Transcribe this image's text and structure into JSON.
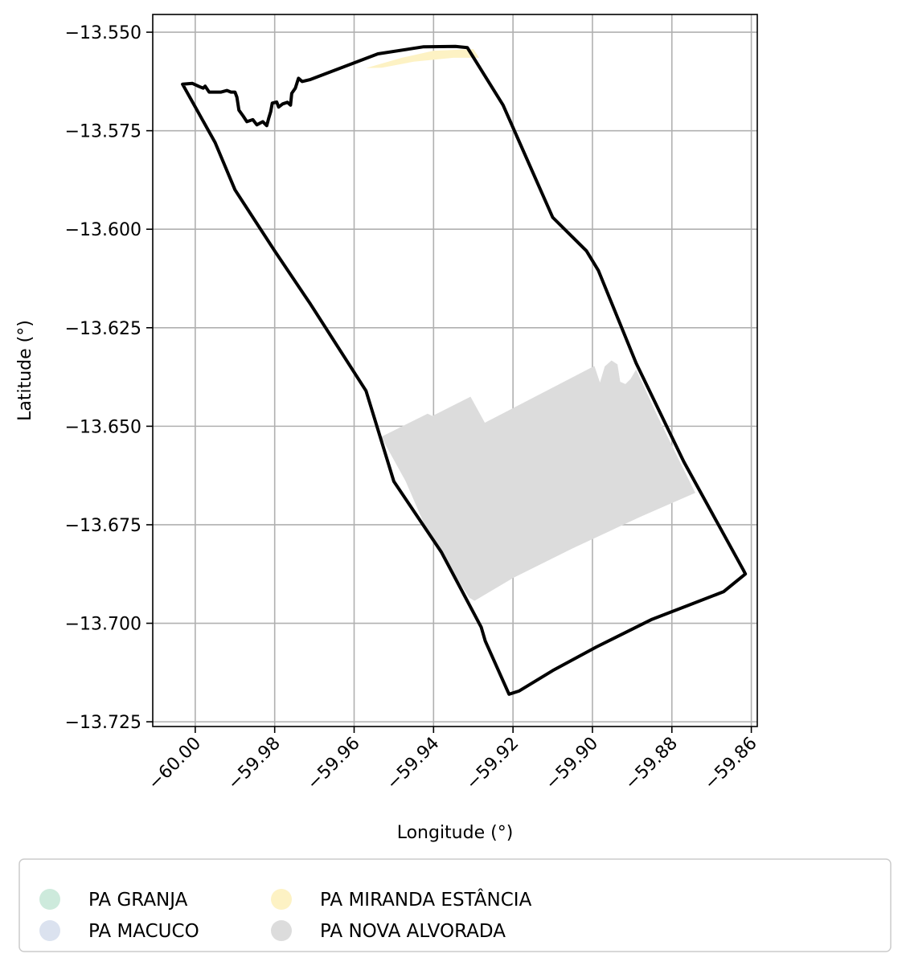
{
  "chart_data": {
    "type": "map",
    "xlabel": "Longitude (°)",
    "ylabel": "Latitude (°)",
    "xlim": [
      -60.0107,
      -59.8585
    ],
    "ylim": [
      -13.7262,
      -13.5455
    ],
    "grid": true,
    "x_ticks": [
      -60.0,
      -59.98,
      -59.96,
      -59.94,
      -59.92,
      -59.9,
      -59.88,
      -59.86
    ],
    "x_tick_labels": [
      "−60.00",
      "−59.98",
      "−59.96",
      "−59.94",
      "−59.92",
      "−59.90",
      "−59.88",
      "−59.86"
    ],
    "y_ticks": [
      -13.55,
      -13.575,
      -13.6,
      -13.625,
      -13.65,
      -13.675,
      -13.7,
      -13.725
    ],
    "y_tick_labels": [
      "−13.550",
      "−13.575",
      "−13.600",
      "−13.625",
      "−13.650",
      "−13.675",
      "−13.700",
      "−13.725"
    ],
    "legend_position": "bottom",
    "legend": [
      {
        "label": "PA GRANJA",
        "color": "#cdeadc"
      },
      {
        "label": "PA MACUCO",
        "color": "#dbe2ef"
      },
      {
        "label": "PA MIRANDA ESTÂNCIA",
        "color": "#fdf2c4"
      },
      {
        "label": "PA NOVA ALVORADA",
        "color": "#dcdcdc"
      }
    ],
    "layers": [
      {
        "name": "PA MIRANDA ESTÂNCIA",
        "color": "#fdf2c4",
        "polygons": [
          [
            [
              -59.957,
              -13.5591
            ],
            [
              -59.948,
              -13.5565
            ],
            [
              -59.94,
              -13.5547
            ],
            [
              -59.93,
              -13.5543
            ],
            [
              -59.9285,
              -13.5565
            ],
            [
              -59.935,
              -13.5565
            ],
            [
              -59.945,
              -13.5575
            ],
            [
              -59.953,
              -13.559
            ]
          ]
        ]
      },
      {
        "name": "PA NOVA ALVORADA",
        "color": "#dcdcdc",
        "polygons": [
          [
            [
              -59.9532,
              -13.6527
            ],
            [
              -59.9415,
              -13.6468
            ],
            [
              -59.9403,
              -13.6474
            ],
            [
              -59.9307,
              -13.6425
            ],
            [
              -59.9271,
              -13.6491
            ],
            [
              -59.8995,
              -13.6347
            ],
            [
              -59.8981,
              -13.6389
            ],
            [
              -59.8969,
              -13.6348
            ],
            [
              -59.8952,
              -13.6333
            ],
            [
              -59.8937,
              -13.6343
            ],
            [
              -59.893,
              -13.6387
            ],
            [
              -59.8917,
              -13.6393
            ],
            [
              -59.8904,
              -13.638
            ],
            [
              -59.889,
              -13.6356
            ],
            [
              -59.8838,
              -13.647
            ],
            [
              -59.878,
              -13.659
            ],
            [
              -59.8741,
              -13.6669
            ],
            [
              -59.888,
              -13.673
            ],
            [
              -59.905,
              -13.681
            ],
            [
              -59.92,
              -13.6885
            ],
            [
              -59.9297,
              -13.6943
            ],
            [
              -59.931,
              -13.6935
            ],
            [
              -59.941,
              -13.678
            ],
            [
              -59.947,
              -13.664
            ]
          ]
        ]
      },
      {
        "name": "boundary",
        "color": "#000000",
        "polygons": [
          [
            [
              -60.0032,
              -13.5632
            ],
            [
              -60.0007,
              -13.563
            ],
            [
              -59.999,
              -13.5638
            ],
            [
              -59.998,
              -13.5642
            ],
            [
              -59.9975,
              -13.5637
            ],
            [
              -59.9965,
              -13.5652
            ],
            [
              -59.995,
              -13.5652
            ],
            [
              -59.9935,
              -13.5652
            ],
            [
              -59.992,
              -13.5648
            ],
            [
              -59.991,
              -13.5652
            ],
            [
              -59.99,
              -13.5652
            ],
            [
              -59.9895,
              -13.5665
            ],
            [
              -59.989,
              -13.5698
            ],
            [
              -59.988,
              -13.5712
            ],
            [
              -59.987,
              -13.5727
            ],
            [
              -59.9855,
              -13.5722
            ],
            [
              -59.9845,
              -13.5735
            ],
            [
              -59.983,
              -13.5727
            ],
            [
              -59.982,
              -13.5737
            ],
            [
              -59.9815,
              -13.5718
            ],
            [
              -59.981,
              -13.5702
            ],
            [
              -59.9806,
              -13.568
            ],
            [
              -59.9795,
              -13.5677
            ],
            [
              -59.979,
              -13.569
            ],
            [
              -59.978,
              -13.5682
            ],
            [
              -59.9768,
              -13.5678
            ],
            [
              -59.976,
              -13.5685
            ],
            [
              -59.9757,
              -13.5655
            ],
            [
              -59.9748,
              -13.5642
            ],
            [
              -59.974,
              -13.5617
            ],
            [
              -59.9731,
              -13.5625
            ],
            [
              -59.971,
              -13.562
            ],
            [
              -59.954,
              -13.5555
            ],
            [
              -59.9425,
              -13.5537
            ],
            [
              -59.9345,
              -13.5536
            ],
            [
              -59.9315,
              -13.5539
            ],
            [
              -59.9225,
              -13.5685
            ],
            [
              -59.91,
              -13.597
            ],
            [
              -59.9015,
              -13.6055
            ],
            [
              -59.8985,
              -13.6105
            ],
            [
              -59.889,
              -13.634
            ],
            [
              -59.877,
              -13.659
            ],
            [
              -59.862,
              -13.6865
            ],
            [
              -59.8615,
              -13.6875
            ],
            [
              -59.867,
              -13.692
            ],
            [
              -59.876,
              -13.6955
            ],
            [
              -59.885,
              -13.699
            ],
            [
              -59.899,
              -13.706
            ],
            [
              -59.91,
              -13.712
            ],
            [
              -59.9185,
              -13.7172
            ],
            [
              -59.921,
              -13.718
            ],
            [
              -59.927,
              -13.7045
            ],
            [
              -59.928,
              -13.701
            ],
            [
              -59.938,
              -13.682
            ],
            [
              -59.95,
              -13.664
            ],
            [
              -59.957,
              -13.641
            ],
            [
              -59.971,
              -13.619
            ],
            [
              -59.98,
              -13.6055
            ],
            [
              -59.99,
              -13.59
            ],
            [
              -59.995,
              -13.578
            ],
            [
              -60.0032,
              -13.5632
            ]
          ]
        ]
      }
    ]
  }
}
